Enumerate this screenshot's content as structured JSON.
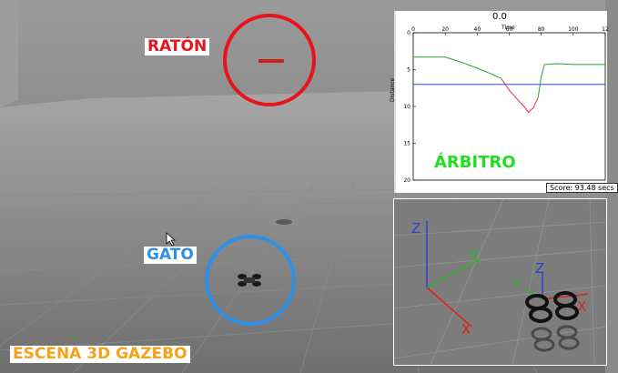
{
  "labels": {
    "raton": "RATÓN",
    "gato": "GATO",
    "escena": "ESCENA 3D GAZEBO",
    "arbitro": "ÁRBITRO"
  },
  "plot": {
    "title": "0.0",
    "xlabel": "Time",
    "ylabel": "Distance",
    "xticks": [
      "0",
      "20",
      "40",
      "60",
      "80",
      "100",
      "12"
    ],
    "yticks": [
      "0",
      "5",
      "10",
      "15",
      "20"
    ],
    "score": "Score: 93.48 secs"
  },
  "chart_data": {
    "type": "line",
    "title": "0.0",
    "xlabel": "Time",
    "ylabel": "Distance",
    "xlim": [
      0,
      120
    ],
    "ylim": [
      20,
      0
    ],
    "series": [
      {
        "color": "#2ca02c",
        "x": [
          0,
          20,
          30,
          40,
          50,
          55
        ],
        "y": [
          3.3,
          3.3,
          4.0,
          4.8,
          5.7,
          6.2
        ]
      },
      {
        "color": "#e8323c",
        "x": [
          55,
          60,
          65,
          70,
          72,
          75,
          78
        ],
        "y": [
          6.2,
          7.8,
          9.0,
          10.2,
          10.8,
          10.2,
          8.8
        ]
      },
      {
        "color": "#2ca02c",
        "x": [
          78,
          80,
          82,
          90,
          100,
          120
        ],
        "y": [
          8.8,
          6.0,
          4.3,
          4.2,
          4.3,
          4.3
        ]
      },
      {
        "color": "#2a4de0",
        "x": [
          0,
          120
        ],
        "y": [
          7.0,
          7.0
        ]
      }
    ]
  },
  "axes_labels": {
    "z1": "Z",
    "y1": "Y",
    "x1": "X",
    "z2": "Z",
    "y2": "Y",
    "x2": "X"
  },
  "colors": {
    "raton_ring": "#e8141c",
    "gato_ring": "#2e8fe6",
    "escena_text": "#f5a21a",
    "arbitro_text": "#1fe01f"
  }
}
